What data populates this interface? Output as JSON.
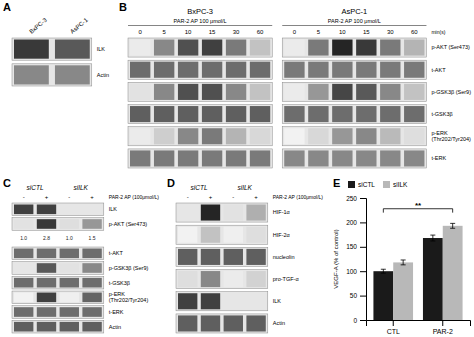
{
  "chart_data": [
    {
      "type": "blot",
      "title": "A",
      "categories": [
        "BxPC-3",
        "AsPC-1"
      ],
      "rows": [
        "ILK",
        "Actin"
      ],
      "boxes": [
        {
          "values": [
            [
              0.82,
              0.72
            ],
            [
              0.55,
              0.55
            ]
          ]
        }
      ],
      "zlim": [
        0,
        1
      ]
    },
    {
      "type": "blot",
      "title": "B",
      "categories": [
        "0",
        "5",
        "10",
        "15",
        "30",
        "60"
      ],
      "x_label": "min(s)",
      "rows": [
        "p-AKT (Ser473)",
        "t-AKT",
        "p-GSK3β (Ser9)",
        "t-GSK3β",
        "p-ERK\n(Thr202/Tyr204)",
        "t-ERK"
      ],
      "boxes": [
        {
          "name": "BxPC-3",
          "subtitle": "PAR-2 AP 100 μmol/L",
          "values": [
            [
              0.15,
              0.55,
              0.75,
              0.8,
              0.6,
              0.35
            ],
            [
              0.65,
              0.65,
              0.65,
              0.65,
              0.65,
              0.65
            ],
            [
              0.2,
              0.55,
              0.75,
              0.75,
              0.55,
              0.35
            ],
            [
              0.7,
              0.7,
              0.7,
              0.7,
              0.7,
              0.7
            ],
            [
              0.15,
              0.3,
              0.55,
              0.6,
              0.4,
              0.25
            ],
            [
              0.6,
              0.6,
              0.6,
              0.6,
              0.6,
              0.6
            ]
          ]
        },
        {
          "name": "AsPC-1",
          "subtitle": "PAR-2 AP 100 μmol/L",
          "values": [
            [
              0.15,
              0.6,
              0.88,
              0.82,
              0.6,
              0.4
            ],
            [
              0.6,
              0.6,
              0.6,
              0.6,
              0.6,
              0.6
            ],
            [
              0.15,
              0.5,
              0.78,
              0.72,
              0.55,
              0.35
            ],
            [
              0.65,
              0.65,
              0.65,
              0.65,
              0.65,
              0.65
            ],
            [
              0.1,
              0.25,
              0.5,
              0.55,
              0.38,
              0.22
            ],
            [
              0.55,
              0.55,
              0.55,
              0.55,
              0.55,
              0.55
            ]
          ]
        }
      ],
      "zlim": [
        0,
        1
      ]
    },
    {
      "type": "blot",
      "title": "C",
      "column_groups": [
        "siCTL",
        "siILK"
      ],
      "categories": [
        "-",
        "+",
        "-",
        "+"
      ],
      "x_label": "PAR-2 AP (100μmol/L)",
      "rows": [
        "ILK",
        "p-AKT (Ser473)",
        "t-AKT",
        "p-GSK3β (Ser9)",
        "t-GSK3β",
        "p-ERK\n(Thr202/Tyr204)",
        "t-ERK",
        "Actin"
      ],
      "boxes": [
        {
          "values": [
            [
              0.8,
              0.8,
              0.18,
              0.18
            ],
            [
              0.2,
              0.82,
              0.22,
              0.5
            ],
            [
              0.65,
              0.65,
              0.65,
              0.65
            ],
            [
              0.18,
              0.72,
              0.2,
              0.55
            ],
            [
              0.65,
              0.65,
              0.65,
              0.65
            ],
            [
              0.1,
              0.8,
              0.12,
              0.68
            ],
            [
              0.65,
              0.65,
              0.65,
              0.65
            ],
            [
              0.7,
              0.7,
              0.7,
              0.7
            ]
          ]
        }
      ],
      "numbers": [
        null,
        [
          "1.0",
          "2.8",
          "1.0",
          "1.5"
        ],
        null,
        null,
        null,
        null,
        null,
        null
      ],
      "zlim": [
        0,
        1
      ]
    },
    {
      "type": "blot",
      "title": "D",
      "column_groups": [
        "siCTL",
        "siILK"
      ],
      "categories": [
        "-",
        "+",
        "-",
        "+"
      ],
      "x_label": "PAR-2 AP (100μmol/L)",
      "rows": [
        "HIF-1α",
        "HIF-2α",
        "nucleolin",
        "pro-TGF-α",
        "ILK",
        "Actin"
      ],
      "boxes": [
        {
          "values": [
            [
              0.18,
              0.88,
              0.2,
              0.42
            ],
            [
              0.1,
              0.35,
              0.12,
              0.22
            ],
            [
              0.7,
              0.7,
              0.7,
              0.7
            ],
            [
              0.22,
              0.55,
              0.15,
              0.28
            ],
            [
              0.8,
              0.8,
              0.18,
              0.18
            ],
            [
              0.7,
              0.7,
              0.7,
              0.7
            ]
          ]
        }
      ],
      "zlim": [
        0,
        1
      ]
    },
    {
      "type": "bar",
      "title": "E",
      "categories": [
        "CTL",
        "PAR-2"
      ],
      "series": [
        {
          "name": "siCTL",
          "color": "#1a1a1a",
          "values": [
            100,
            168
          ],
          "errors": [
            4,
            6
          ]
        },
        {
          "name": "siILK",
          "color": "#b8b8b8",
          "values": [
            118,
            193
          ],
          "errors": [
            5,
            5
          ]
        }
      ],
      "y_label": "VEGF-A (% of control)",
      "ylim": [
        0,
        250
      ],
      "yticks": [
        0,
        50,
        100,
        150,
        200,
        250
      ],
      "legend": "upper left",
      "annotations": [
        {
          "text": "**",
          "y": [
            220,
            228
          ]
        }
      ]
    }
  ]
}
